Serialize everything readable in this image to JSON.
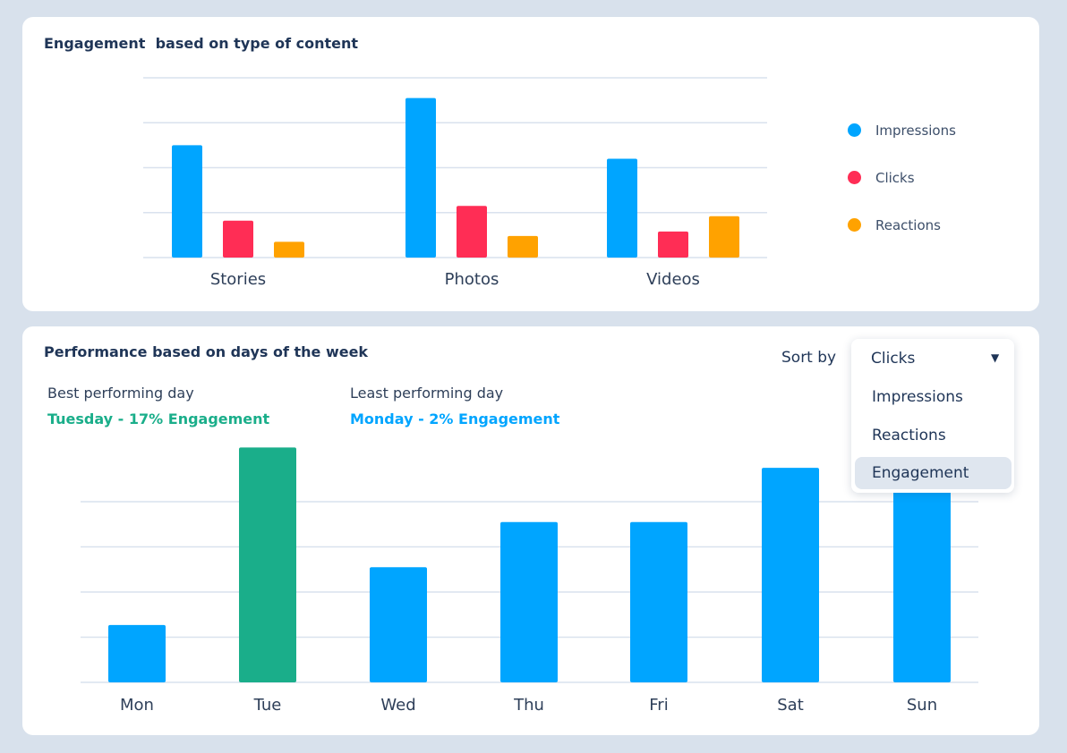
{
  "content_card": {
    "title": "Engagement  based on type of content",
    "legend": [
      {
        "label": "Impressions",
        "color": "#00a5ff"
      },
      {
        "label": "Clicks",
        "color": "#ff2d55"
      },
      {
        "label": "Reactions",
        "color": "#ffa200"
      }
    ]
  },
  "weekday_card": {
    "title": "Performance based on days of the week",
    "best": {
      "label": "Best performing day",
      "value": "Tuesday - 17% Engagement",
      "color": "#1aae8a"
    },
    "least": {
      "label": "Least performing day",
      "value": "Monday - 2% Engagement",
      "color": "#00a5ff"
    },
    "sort_label": "Sort by",
    "sort": {
      "selected": "Clicks",
      "options": [
        "Impressions",
        "Reactions",
        "Engagement"
      ],
      "highlighted": "Engagement"
    }
  },
  "chart_data": [
    {
      "type": "bar",
      "categories": [
        "Stories",
        "Photos",
        "Videos"
      ],
      "series": [
        {
          "name": "Impressions",
          "values": [
            2.5,
            3.55,
            2.2
          ],
          "color": "#00a5ff"
        },
        {
          "name": "Clicks",
          "values": [
            0.82,
            1.15,
            0.58
          ],
          "color": "#ff2d55"
        },
        {
          "name": "Reactions",
          "values": [
            0.35,
            0.48,
            0.92
          ],
          "color": "#ffa200"
        }
      ],
      "ylim": [
        0,
        4
      ],
      "grid": true
    },
    {
      "type": "bar",
      "categories": [
        "Mon",
        "Tue",
        "Wed",
        "Thu",
        "Fri",
        "Sat",
        "Sun"
      ],
      "values": [
        1.27,
        5.2,
        2.55,
        3.55,
        3.55,
        4.75,
        4.4
      ],
      "colors": [
        "#00a5ff",
        "#1aae8a",
        "#00a5ff",
        "#00a5ff",
        "#00a5ff",
        "#00a5ff",
        "#00a5ff"
      ],
      "ylim": [
        0,
        5
      ],
      "grid": true
    }
  ]
}
